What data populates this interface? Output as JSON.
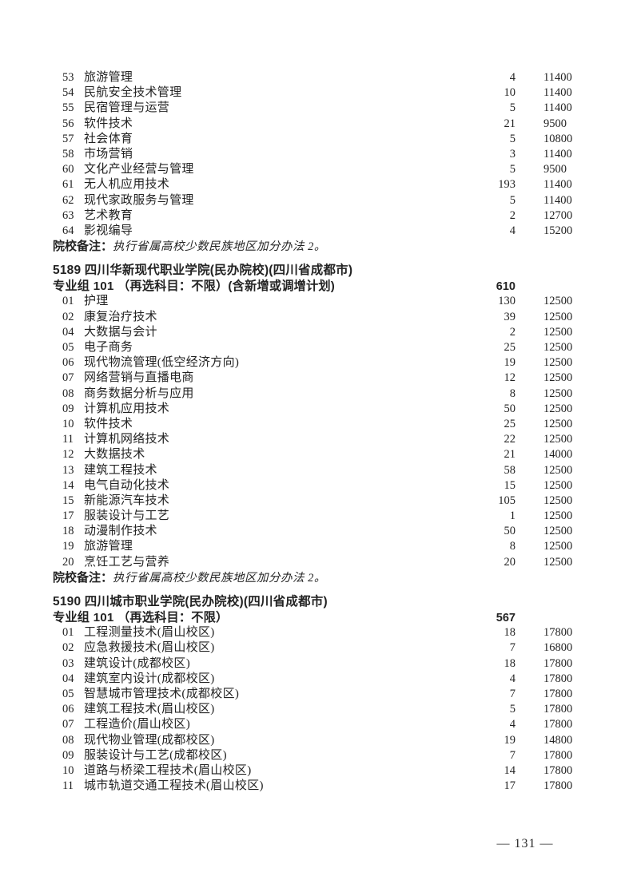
{
  "page": {
    "number_display": "— 131 —"
  },
  "remark_label": "院校备注：",
  "sections": [
    {
      "rows": [
        {
          "no": "53",
          "name": "旅游管理",
          "quota": "4",
          "fee": "11400"
        },
        {
          "no": "54",
          "name": "民航安全技术管理",
          "quota": "10",
          "fee": "11400"
        },
        {
          "no": "55",
          "name": "民宿管理与运营",
          "quota": "5",
          "fee": "11400"
        },
        {
          "no": "56",
          "name": "软件技术",
          "quota": "21",
          "fee": "9500"
        },
        {
          "no": "57",
          "name": "社会体育",
          "quota": "5",
          "fee": "10800"
        },
        {
          "no": "58",
          "name": "市场营销",
          "quota": "3",
          "fee": "11400"
        },
        {
          "no": "60",
          "name": "文化产业经营与管理",
          "quota": "5",
          "fee": "9500"
        },
        {
          "no": "61",
          "name": "无人机应用技术",
          "quota": "193",
          "fee": "11400"
        },
        {
          "no": "62",
          "name": "现代家政服务与管理",
          "quota": "5",
          "fee": "11400"
        },
        {
          "no": "63",
          "name": "艺术教育",
          "quota": "2",
          "fee": "12700"
        },
        {
          "no": "64",
          "name": "影视编导",
          "quota": "4",
          "fee": "15200"
        }
      ],
      "remark": "执行省属高校少数民族地区加分办法 2。"
    },
    {
      "school_header": "5189 四川华新现代职业学院(民办院校)(四川省成都市)",
      "group_header": "专业组 101 （再选科目：不限）(含新增或调增计划)",
      "group_quota": "610",
      "rows": [
        {
          "no": "01",
          "name": "护理",
          "quota": "130",
          "fee": "12500"
        },
        {
          "no": "02",
          "name": "康复治疗技术",
          "quota": "39",
          "fee": "12500"
        },
        {
          "no": "04",
          "name": "大数据与会计",
          "quota": "2",
          "fee": "12500"
        },
        {
          "no": "05",
          "name": "电子商务",
          "quota": "25",
          "fee": "12500"
        },
        {
          "no": "06",
          "name": "现代物流管理(低空经济方向)",
          "quota": "19",
          "fee": "12500"
        },
        {
          "no": "07",
          "name": "网络营销与直播电商",
          "quota": "12",
          "fee": "12500"
        },
        {
          "no": "08",
          "name": "商务数据分析与应用",
          "quota": "8",
          "fee": "12500"
        },
        {
          "no": "09",
          "name": "计算机应用技术",
          "quota": "50",
          "fee": "12500"
        },
        {
          "no": "10",
          "name": "软件技术",
          "quota": "25",
          "fee": "12500"
        },
        {
          "no": "11",
          "name": "计算机网络技术",
          "quota": "22",
          "fee": "12500"
        },
        {
          "no": "12",
          "name": "大数据技术",
          "quota": "21",
          "fee": "14000"
        },
        {
          "no": "13",
          "name": "建筑工程技术",
          "quota": "58",
          "fee": "12500"
        },
        {
          "no": "14",
          "name": "电气自动化技术",
          "quota": "15",
          "fee": "12500"
        },
        {
          "no": "15",
          "name": "新能源汽车技术",
          "quota": "105",
          "fee": "12500"
        },
        {
          "no": "17",
          "name": "服装设计与工艺",
          "quota": "1",
          "fee": "12500"
        },
        {
          "no": "18",
          "name": "动漫制作技术",
          "quota": "50",
          "fee": "12500"
        },
        {
          "no": "19",
          "name": "旅游管理",
          "quota": "8",
          "fee": "12500"
        },
        {
          "no": "20",
          "name": "烹饪工艺与营养",
          "quota": "20",
          "fee": "12500"
        }
      ],
      "remark": "执行省属高校少数民族地区加分办法 2。"
    },
    {
      "school_header": "5190 四川城市职业学院(民办院校)(四川省成都市)",
      "group_header": "专业组 101 （再选科目：不限）",
      "group_quota": "567",
      "rows": [
        {
          "no": "01",
          "name": "工程测量技术(眉山校区)",
          "quota": "18",
          "fee": "17800"
        },
        {
          "no": "02",
          "name": "应急救援技术(眉山校区)",
          "quota": "7",
          "fee": "16800"
        },
        {
          "no": "03",
          "name": "建筑设计(成都校区)",
          "quota": "18",
          "fee": "17800"
        },
        {
          "no": "04",
          "name": "建筑室内设计(成都校区)",
          "quota": "4",
          "fee": "17800"
        },
        {
          "no": "05",
          "name": "智慧城市管理技术(成都校区)",
          "quota": "7",
          "fee": "17800"
        },
        {
          "no": "06",
          "name": "建筑工程技术(眉山校区)",
          "quota": "5",
          "fee": "17800"
        },
        {
          "no": "07",
          "name": "工程造价(眉山校区)",
          "quota": "4",
          "fee": "17800"
        },
        {
          "no": "08",
          "name": "现代物业管理(成都校区)",
          "quota": "19",
          "fee": "14800"
        },
        {
          "no": "09",
          "name": "服装设计与工艺(成都校区)",
          "quota": "7",
          "fee": "17800"
        },
        {
          "no": "10",
          "name": "道路与桥梁工程技术(眉山校区)",
          "quota": "14",
          "fee": "17800"
        },
        {
          "no": "11",
          "name": "城市轨道交通工程技术(眉山校区)",
          "quota": "17",
          "fee": "17800"
        }
      ]
    }
  ]
}
